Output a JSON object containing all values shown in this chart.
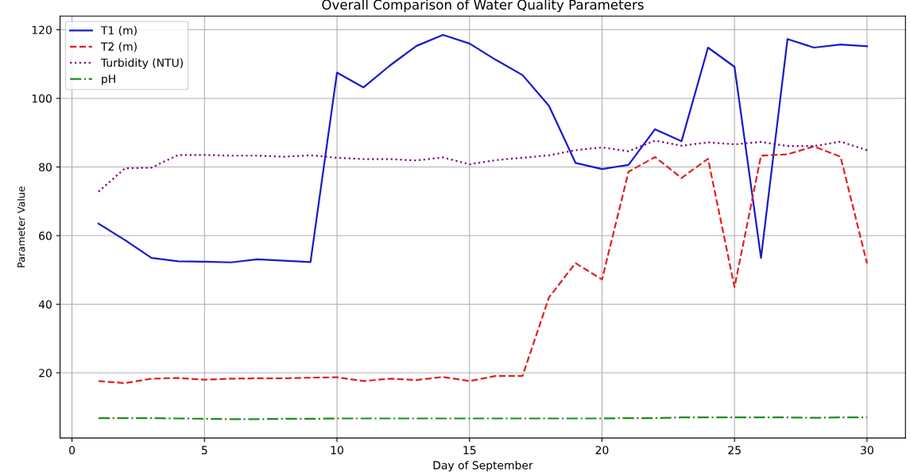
{
  "chart_data": {
    "type": "line",
    "title": "Overall Comparison of Water Quality Parameters",
    "xlabel": "Day of September",
    "ylabel": "Parameter Value",
    "x": [
      1,
      2,
      3,
      4,
      5,
      6,
      7,
      8,
      9,
      10,
      11,
      12,
      13,
      14,
      15,
      16,
      17,
      18,
      19,
      20,
      21,
      22,
      23,
      24,
      25,
      26,
      27,
      28,
      29,
      30
    ],
    "series": [
      {
        "name": "T1 (m)",
        "color": "#1a1acc",
        "line_style": "solid",
        "values": [
          63.5,
          58.7,
          53.5,
          52.5,
          52.4,
          52.2,
          53.1,
          52.7,
          52.3,
          107.5,
          103.2,
          109.6,
          115.3,
          118.5,
          116,
          111.2,
          106.8,
          97.8,
          81.2,
          79.4,
          80.6,
          91,
          87.5,
          114.8,
          109.2,
          53.5,
          117.3,
          114.8,
          115.7,
          115.2
        ]
      },
      {
        "name": "T2 (m)",
        "color": "#dd2222",
        "line_style": "dashed",
        "values": [
          17.6,
          17,
          18.3,
          18.5,
          18,
          18.3,
          18.4,
          18.4,
          18.6,
          18.7,
          17.6,
          18.3,
          17.9,
          18.8,
          17.6,
          19.1,
          19.1,
          42,
          52,
          47.2,
          78.6,
          82.9,
          76.8,
          82.4,
          45,
          83.3,
          83.7,
          86,
          83,
          51.9
        ]
      },
      {
        "name": "Turbidity (NTU)",
        "color": "#800080",
        "line_style": "dotted",
        "values": [
          72.8,
          79.6,
          79.8,
          83.5,
          83.5,
          83.3,
          83.3,
          83,
          83.4,
          82.7,
          82.3,
          82.3,
          81.9,
          82.8,
          80.8,
          82,
          82.7,
          83.4,
          84.9,
          85.7,
          84.6,
          87.7,
          86.2,
          87.2,
          86.6,
          87.3,
          86.1,
          86.1,
          87.4,
          84.9
        ]
      },
      {
        "name": "pH",
        "color": "#228b22",
        "line_style": "dashdot",
        "values": [
          6.8,
          6.8,
          6.8,
          6.7,
          6.6,
          6.5,
          6.5,
          6.6,
          6.6,
          6.7,
          6.7,
          6.7,
          6.7,
          6.7,
          6.7,
          6.7,
          6.7,
          6.7,
          6.7,
          6.7,
          6.8,
          6.8,
          7,
          7,
          7,
          7,
          7,
          6.9,
          7,
          7
        ]
      }
    ],
    "xlim": [
      -0.45,
      31.45
    ],
    "ylim": [
      1,
      124
    ],
    "xticks": [
      0,
      5,
      10,
      15,
      20,
      25,
      30
    ],
    "yticks": [
      20,
      40,
      60,
      80,
      100,
      120
    ],
    "grid": true,
    "legend": "top left"
  }
}
